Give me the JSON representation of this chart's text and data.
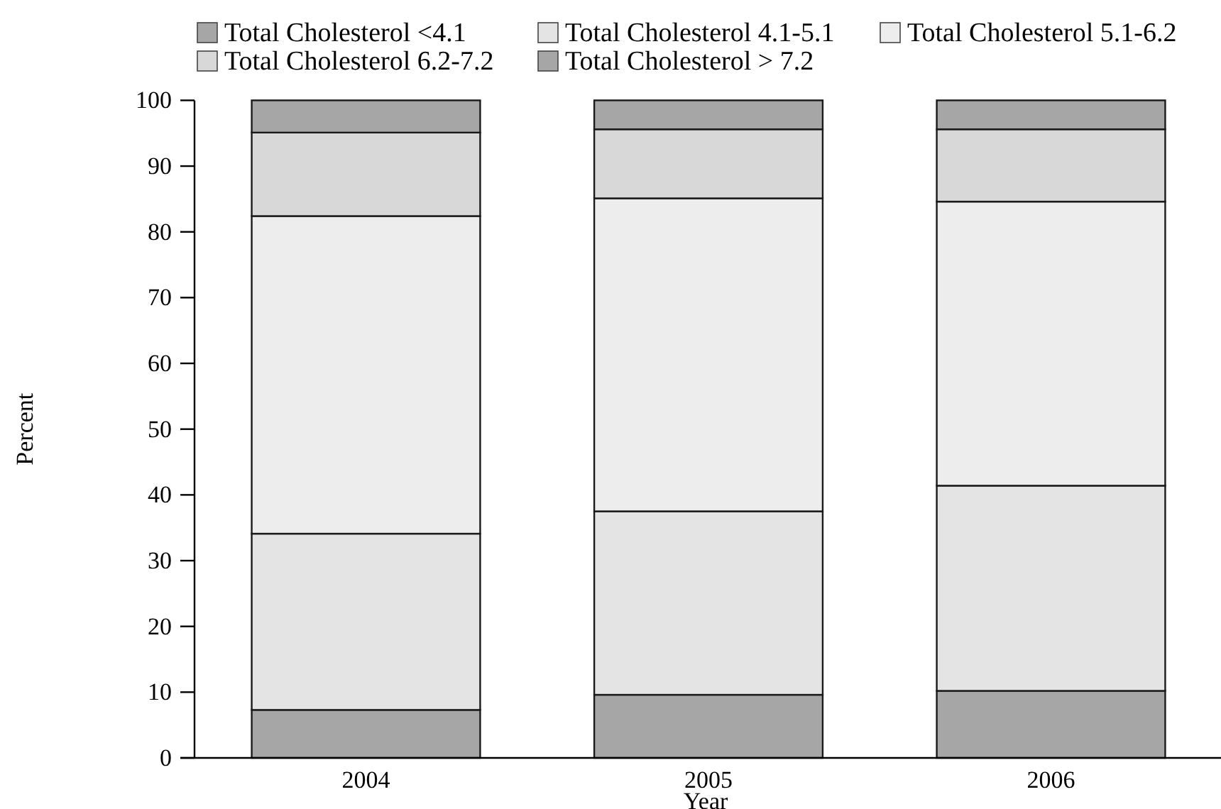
{
  "chart_data": {
    "type": "bar",
    "stacked": true,
    "xlabel": "Year",
    "ylabel": "Percent",
    "categories": [
      "2004",
      "2005",
      "2006"
    ],
    "series": [
      {
        "name": "Total Cholesterol <4.1",
        "color": "#a6a6a6",
        "values": [
          7.3,
          9.6,
          10.2
        ]
      },
      {
        "name": "Total Cholesterol 4.1-5.1",
        "color": "#e4e4e4",
        "values": [
          26.8,
          27.9,
          31.2
        ]
      },
      {
        "name": "Total Cholesterol 5.1-6.2",
        "color": "#ededed",
        "values": [
          48.3,
          47.6,
          43.2
        ]
      },
      {
        "name": "Total Cholesterol 6.2-7.2",
        "color": "#d8d8d8",
        "values": [
          12.7,
          10.5,
          11.0
        ]
      },
      {
        "name": "Total Cholesterol > 7.2",
        "color": "#a6a6a6",
        "values": [
          4.9,
          4.4,
          4.4
        ]
      }
    ],
    "ylim": [
      0,
      100
    ],
    "yticks": [
      0,
      10,
      20,
      30,
      40,
      50,
      60,
      70,
      80,
      90,
      100
    ],
    "legend": "top"
  }
}
